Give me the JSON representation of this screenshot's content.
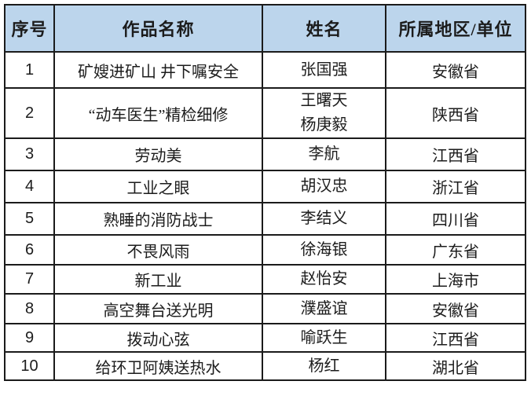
{
  "table": {
    "title_semantic": "photography-award-winner-list",
    "headers": [
      {
        "key": "no",
        "label": "序号"
      },
      {
        "key": "title",
        "label": "作品名称"
      },
      {
        "key": "name",
        "label": "姓名"
      },
      {
        "key": "region",
        "label": "所属地区/单位"
      }
    ],
    "rows": [
      {
        "no": "1",
        "title": "矿嫂进矿山 井下嘱安全",
        "name": "张国强",
        "region": "安徽省"
      },
      {
        "no": "2",
        "title": "“动车医生”精检细修",
        "name": "王曙天\n杨庚毅",
        "region": "陕西省"
      },
      {
        "no": "3",
        "title": "劳动美",
        "name": "李航",
        "region": "江西省"
      },
      {
        "no": "4",
        "title": "工业之眼",
        "name": "胡汉忠",
        "region": "浙江省"
      },
      {
        "no": "5",
        "title": "熟睡的消防战士",
        "name": "李结义",
        "region": "四川省"
      },
      {
        "no": "6",
        "title": "不畏风雨",
        "name": "徐海银",
        "region": "广东省"
      },
      {
        "no": "7",
        "title": "新工业",
        "name": "赵怡安",
        "region": "上海市"
      },
      {
        "no": "8",
        "title": "高空舞台送光明",
        "name": "濮盛谊",
        "region": "安徽省"
      },
      {
        "no": "9",
        "title": "拨动心弦",
        "name": "喻跃生",
        "region": "江西省"
      },
      {
        "no": "10",
        "title": "给环卫阿姨送热水",
        "name": "杨红",
        "region": "湖北省"
      }
    ],
    "colors": {
      "header_bg": "#bcd5ec",
      "border": "#1b1b1b",
      "text": "#1c1c1c",
      "page_bg": "#ffffff"
    }
  }
}
